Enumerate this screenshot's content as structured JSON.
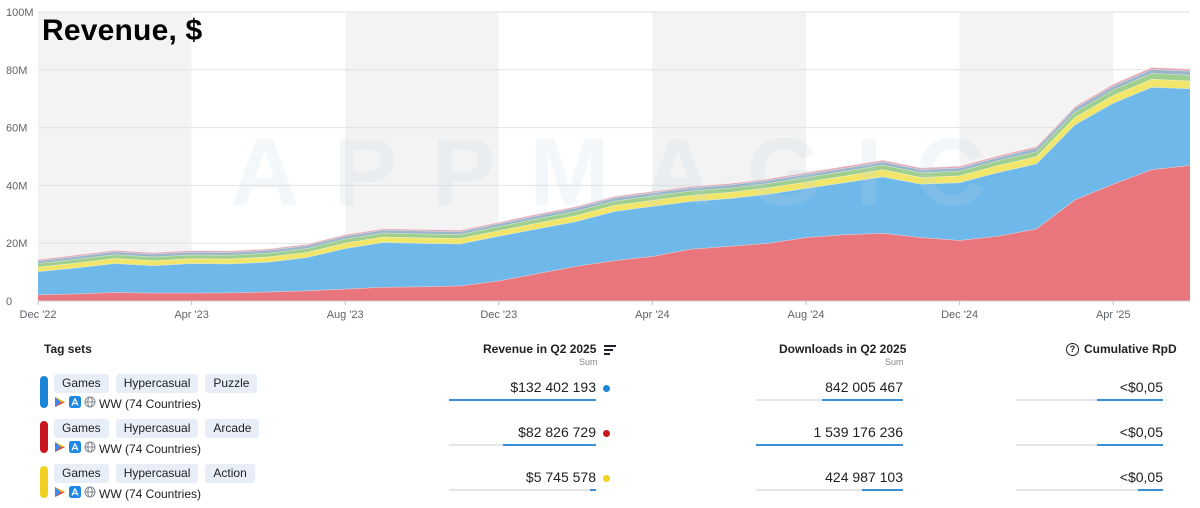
{
  "chart_data": {
    "type": "area",
    "stacked": true,
    "title": "Revenue, $",
    "watermark": "APPMAGIC",
    "x_dates": [
      "2022-12",
      "2023-01",
      "2023-02",
      "2023-03",
      "2023-04",
      "2023-05",
      "2023-06",
      "2023-07",
      "2023-08",
      "2023-09",
      "2023-10",
      "2023-11",
      "2023-12",
      "2024-01",
      "2024-02",
      "2024-03",
      "2024-04",
      "2024-05",
      "2024-06",
      "2024-07",
      "2024-08",
      "2024-09",
      "2024-10",
      "2024-11",
      "2024-12",
      "2025-01",
      "2025-02",
      "2025-03",
      "2025-04",
      "2025-05",
      "2025-06"
    ],
    "x_tick_labels": [
      {
        "date": "2022-12",
        "label": "Dec '22"
      },
      {
        "date": "2023-04",
        "label": "Apr '23"
      },
      {
        "date": "2023-08",
        "label": "Aug '23"
      },
      {
        "date": "2023-12",
        "label": "Dec '23"
      },
      {
        "date": "2024-04",
        "label": "Apr '24"
      },
      {
        "date": "2024-08",
        "label": "Aug '24"
      },
      {
        "date": "2024-12",
        "label": "Dec '24"
      },
      {
        "date": "2025-04",
        "label": "Apr '25"
      }
    ],
    "ylim": [
      0,
      100000000
    ],
    "y_ticks": [
      {
        "value": 0,
        "label": "0"
      },
      {
        "value": 20000000,
        "label": "20M"
      },
      {
        "value": 40000000,
        "label": "40M"
      },
      {
        "value": 60000000,
        "label": "60M"
      },
      {
        "value": 80000000,
        "label": "80M"
      },
      {
        "value": 100000000,
        "label": "100M"
      }
    ],
    "grid": true,
    "series": [
      {
        "color": "#e8767c",
        "values": [
          2.2,
          2.5,
          3.0,
          2.8,
          2.8,
          2.9,
          3.2,
          3.6,
          4.2,
          4.8,
          5.0,
          5.3,
          7.0,
          9.5,
          12.0,
          14.0,
          15.5,
          18.0,
          19.0,
          20.0,
          22.0,
          23.0,
          23.5,
          22.0,
          21.0,
          22.5,
          25.0,
          35.0,
          40.5,
          45.5,
          47.0
        ]
      },
      {
        "color": "#6fb9ea",
        "values": [
          8.0,
          9.0,
          10.0,
          9.5,
          10.2,
          10.0,
          10.3,
          11.5,
          14.0,
          15.5,
          15.0,
          14.5,
          15.5,
          15.5,
          15.5,
          17.0,
          17.3,
          16.5,
          16.5,
          17.0,
          17.0,
          18.0,
          19.5,
          18.5,
          20.0,
          22.0,
          22.5,
          26.0,
          28.0,
          28.5,
          26.5
        ]
      },
      {
        "color": "#f2e66a",
        "values": [
          1.6,
          1.7,
          1.8,
          1.7,
          1.7,
          1.7,
          1.8,
          1.8,
          1.9,
          1.9,
          1.9,
          1.9,
          1.9,
          2.0,
          2.1,
          2.1,
          2.1,
          2.1,
          2.1,
          2.2,
          2.2,
          2.3,
          2.5,
          2.3,
          2.4,
          2.5,
          2.5,
          2.6,
          2.7,
          2.8,
          2.7
        ]
      },
      {
        "color": "#9fcf8e",
        "values": [
          1.2,
          1.3,
          1.3,
          1.3,
          1.3,
          1.3,
          1.3,
          1.3,
          1.4,
          1.4,
          1.4,
          1.4,
          1.4,
          1.5,
          1.5,
          1.5,
          1.5,
          1.5,
          1.5,
          1.5,
          1.6,
          1.6,
          1.6,
          1.6,
          1.6,
          1.6,
          1.7,
          1.8,
          1.9,
          2.0,
          2.0
        ]
      },
      {
        "color": "#9ab6c9",
        "values": [
          0.9,
          1.0,
          1.0,
          1.0,
          1.0,
          1.0,
          1.0,
          1.0,
          1.0,
          1.0,
          1.0,
          1.0,
          1.0,
          1.1,
          1.1,
          1.1,
          1.1,
          1.1,
          1.1,
          1.1,
          1.1,
          1.1,
          1.1,
          1.1,
          1.1,
          1.1,
          1.2,
          1.3,
          1.3,
          1.4,
          1.4
        ]
      },
      {
        "color": "#e5a7b6",
        "values": [
          0.5,
          0.5,
          0.5,
          0.5,
          0.5,
          0.5,
          0.5,
          0.5,
          0.5,
          0.5,
          0.5,
          0.5,
          0.5,
          0.5,
          0.5,
          0.5,
          0.5,
          0.5,
          0.5,
          0.5,
          0.6,
          0.6,
          0.6,
          0.6,
          0.6,
          0.6,
          0.6,
          0.6,
          0.7,
          0.7,
          0.7
        ]
      }
    ],
    "values_unit_multiplier": 1000000
  },
  "table": {
    "headers": {
      "tag_sets": "Tag sets",
      "revenue": "Revenue in Q2 2025",
      "revenue_sub": "Sum",
      "downloads": "Downloads in Q2 2025",
      "downloads_sub": "Sum",
      "rpd": "Cumulative RpD",
      "help_glyph": "?"
    },
    "rows": [
      {
        "color": "#1a85d6",
        "tags": [
          "Games",
          "Hypercasual",
          "Puzzle"
        ],
        "region": "WW (74 Countries)",
        "revenue": "$132 402 193",
        "revenue_dot": "#1a85d6",
        "revenue_share": 1.0,
        "downloads": "842 005 467",
        "downloads_share": 0.55,
        "rpd": "<$0,05",
        "rpd_share": 0.45
      },
      {
        "color": "#c8161e",
        "tags": [
          "Games",
          "Hypercasual",
          "Arcade"
        ],
        "region": "WW (74 Countries)",
        "revenue": "$82 826 729",
        "revenue_dot": "#c8161e",
        "revenue_share": 0.63,
        "downloads": "1 539 176 236",
        "downloads_share": 1.0,
        "rpd": "<$0,05",
        "rpd_share": 0.45
      },
      {
        "color": "#f0d020",
        "tags": [
          "Games",
          "Hypercasual",
          "Action"
        ],
        "region": "WW (74 Countries)",
        "revenue": "$5 745 578",
        "revenue_dot": "#f0d020",
        "revenue_share": 0.04,
        "downloads": "424 987 103",
        "downloads_share": 0.28,
        "rpd": "<$0,05",
        "rpd_share": 0.17
      }
    ]
  }
}
